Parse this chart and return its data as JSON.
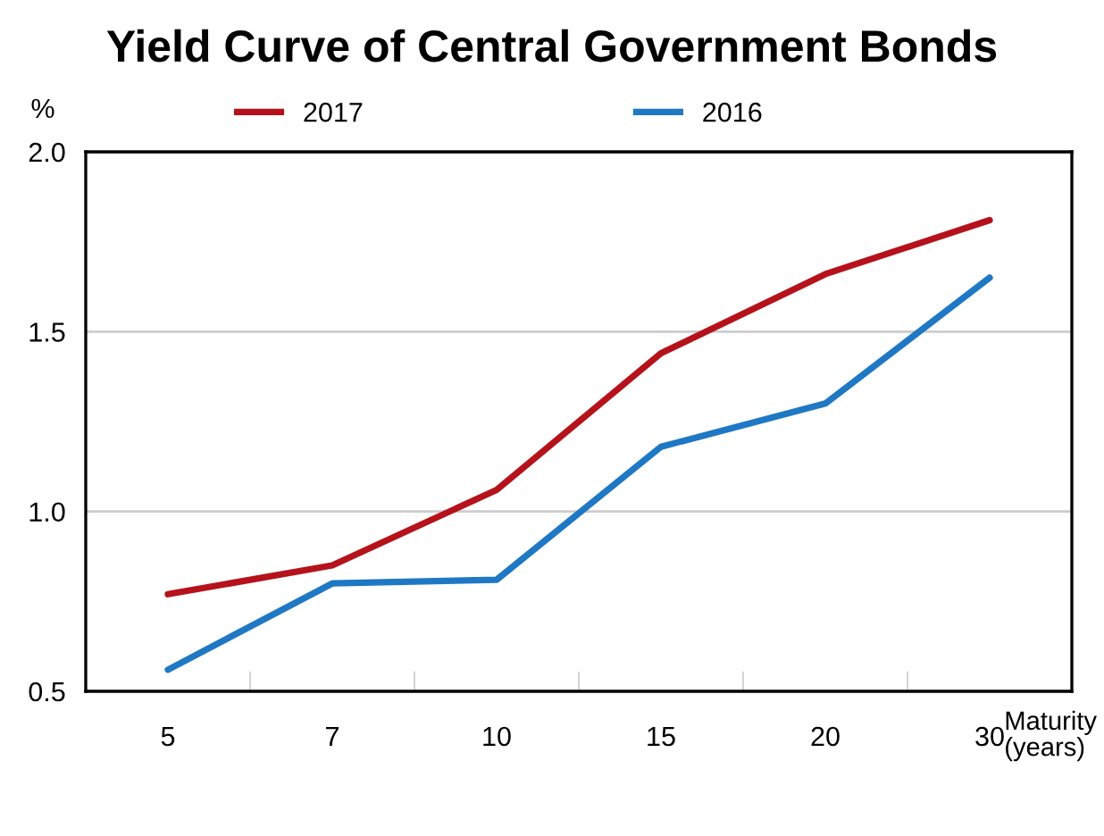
{
  "chart_data": {
    "type": "line",
    "title": "Yield Curve of Central Government Bonds",
    "ylabel": "%",
    "xlabel": "Maturity\n(years)",
    "categories": [
      "5",
      "7",
      "10",
      "15",
      "20",
      "30"
    ],
    "series": [
      {
        "name": "2017",
        "color": "#b5121b",
        "values": [
          0.77,
          0.85,
          1.06,
          1.44,
          1.66,
          1.81
        ]
      },
      {
        "name": "2016",
        "color": "#1f78c4",
        "values": [
          0.56,
          0.8,
          0.81,
          1.18,
          1.3,
          1.65
        ]
      }
    ],
    "ylim": [
      0.5,
      2.0
    ],
    "yticks": [
      {
        "value": 0.5,
        "label": "0.5"
      },
      {
        "value": 1.0,
        "label": "1.0"
      },
      {
        "value": 1.5,
        "label": "1.5"
      },
      {
        "value": 2.0,
        "label": "2.0"
      }
    ],
    "grid": "y",
    "legend": "top",
    "marker": "none",
    "line_style": "solid"
  }
}
